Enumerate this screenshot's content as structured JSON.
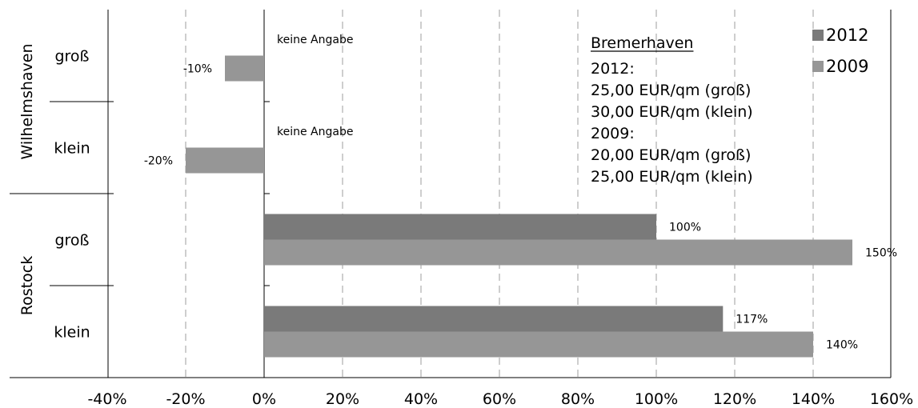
{
  "chart_data": {
    "type": "bar",
    "orientation": "horizontal",
    "xlim": [
      -40,
      160
    ],
    "x_ticks": [
      -40,
      -20,
      0,
      20,
      40,
      60,
      80,
      100,
      120,
      140,
      160
    ],
    "x_tick_format": "%",
    "grid": "vertical dashed",
    "legend_position": "top-right",
    "groups": [
      {
        "name": "Wilhelmshaven",
        "categories": [
          {
            "label": "groß",
            "values": {
              "2012": null,
              "2009": -10
            },
            "data_labels": {
              "2009": "-10%"
            },
            "annotation": "keine Angabe"
          },
          {
            "label": "klein",
            "values": {
              "2012": null,
              "2009": -20
            },
            "data_labels": {
              "2009": "-20%"
            },
            "annotation": "keine Angabe"
          }
        ]
      },
      {
        "name": "Rostock",
        "categories": [
          {
            "label": "groß",
            "values": {
              "2012": 100,
              "2009": 150
            },
            "data_labels": {
              "2012": "100%",
              "2009": "150%"
            },
            "annotation": ""
          },
          {
            "label": "klein",
            "values": {
              "2012": 117,
              "2009": 140
            },
            "data_labels": {
              "2012": "117%",
              "2009": "140%"
            },
            "annotation": ""
          }
        ]
      }
    ],
    "series": [
      {
        "name": "2012",
        "color": "#7a7a7a"
      },
      {
        "name": "2009",
        "color": "#969696"
      }
    ],
    "info_box": {
      "title": "Bremerhaven",
      "lines": [
        "2012:",
        "25,00 EUR/qm (groß)",
        "30,00 EUR/qm (klein)",
        "2009:",
        "20,00 EUR/qm (groß)",
        "25,00 EUR/qm (klein)"
      ]
    }
  }
}
